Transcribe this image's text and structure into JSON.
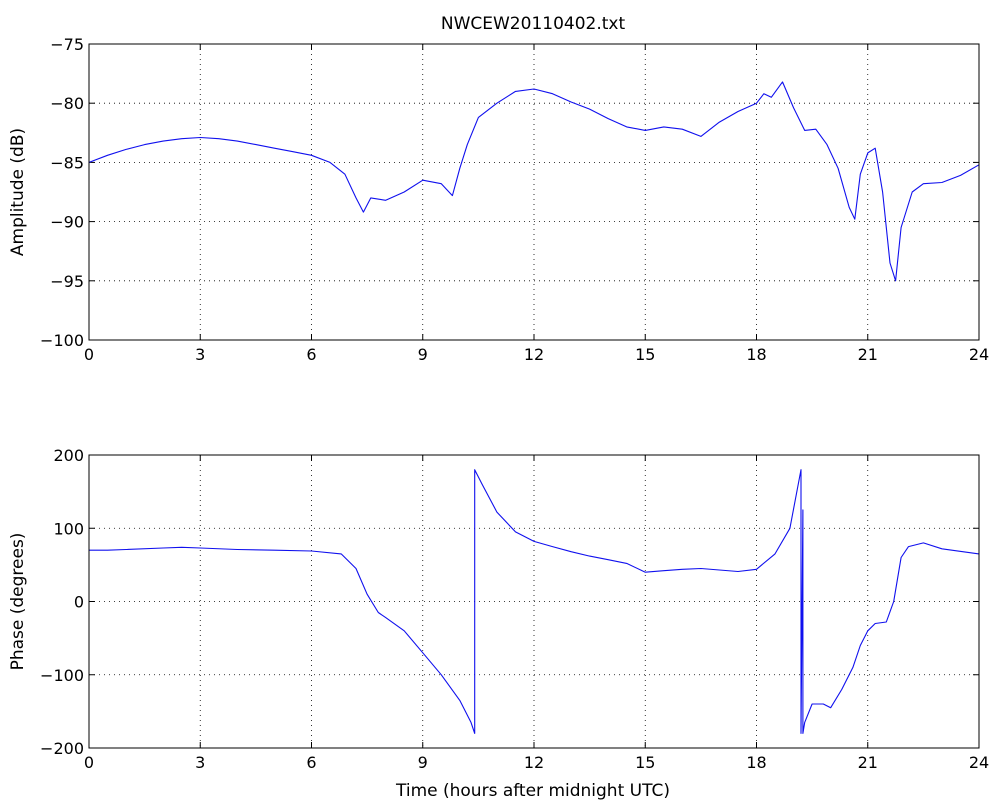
{
  "chart_data": [
    {
      "type": "line",
      "title": "NWCEW20110402.txt",
      "xlabel": "",
      "ylabel": "Amplitude (dB)",
      "xlim": [
        0,
        24
      ],
      "ylim": [
        -100,
        -75
      ],
      "xticks": [
        "0",
        "3",
        "6",
        "9",
        "12",
        "15",
        "18",
        "21",
        "24"
      ],
      "yticks": [
        "−75",
        "−80",
        "−85",
        "−90",
        "−95",
        "−100"
      ],
      "grid": true,
      "series": [
        {
          "color": "#1010ee",
          "x": [
            0,
            0.5,
            1,
            1.5,
            2,
            2.5,
            3,
            3.5,
            4,
            4.5,
            5,
            5.5,
            6,
            6.5,
            6.9,
            7.2,
            7.4,
            7.6,
            8.0,
            8.5,
            9.0,
            9.5,
            9.8,
            10.0,
            10.2,
            10.5,
            11.0,
            11.5,
            12.0,
            12.5,
            13.0,
            13.5,
            14.0,
            14.5,
            15.0,
            15.5,
            16.0,
            16.5,
            17.0,
            17.5,
            18.0,
            18.2,
            18.4,
            18.7,
            19.0,
            19.3,
            19.6,
            19.9,
            20.2,
            20.5,
            20.65,
            20.8,
            21.0,
            21.2,
            21.4,
            21.6,
            21.75,
            21.9,
            22.2,
            22.5,
            23.0,
            23.5,
            24.0
          ],
          "y": [
            -85.0,
            -84.4,
            -83.9,
            -83.5,
            -83.2,
            -83.0,
            -82.9,
            -83.0,
            -83.2,
            -83.5,
            -83.8,
            -84.1,
            -84.4,
            -85.0,
            -86.0,
            -88.0,
            -89.2,
            -88.0,
            -88.2,
            -87.5,
            -86.5,
            -86.8,
            -87.8,
            -85.5,
            -83.5,
            -81.2,
            -80.0,
            -79.0,
            -78.8,
            -79.2,
            -79.9,
            -80.5,
            -81.3,
            -82.0,
            -82.3,
            -82.0,
            -82.2,
            -82.8,
            -81.6,
            -80.7,
            -80.0,
            -79.2,
            -79.5,
            -78.2,
            -80.4,
            -82.3,
            -82.2,
            -83.5,
            -85.5,
            -88.8,
            -89.8,
            -86.0,
            -84.2,
            -83.8,
            -87.5,
            -93.5,
            -95.0,
            -90.5,
            -87.5,
            -86.8,
            -86.7,
            -86.1,
            -85.2
          ]
        }
      ]
    },
    {
      "type": "line",
      "title": "",
      "xlabel": "Time (hours after midnight UTC)",
      "ylabel": "Phase (degrees)",
      "xlim": [
        0,
        24
      ],
      "ylim": [
        -200,
        200
      ],
      "xticks": [
        "0",
        "3",
        "6",
        "9",
        "12",
        "15",
        "18",
        "21",
        "24"
      ],
      "yticks": [
        "200",
        "100",
        "0",
        "−100",
        "−200"
      ],
      "grid": true,
      "series": [
        {
          "color": "#1010ee",
          "x": [
            0,
            0.5,
            1,
            2,
            2.5,
            3,
            4,
            5,
            6,
            6.8,
            7.2,
            7.5,
            7.8,
            8.0,
            8.5,
            9.0,
            9.5,
            10.0,
            10.3,
            10.4,
            10.4,
            10.6,
            11.0,
            11.5,
            12.0,
            12.5,
            13.0,
            13.5,
            14.0,
            14.5,
            15.0,
            15.5,
            16.0,
            16.5,
            17.0,
            17.5,
            18.0,
            18.5,
            18.9,
            19.2,
            19.2,
            19.25,
            19.25,
            19.3,
            19.5,
            19.8,
            20.0,
            20.3,
            20.6,
            20.8,
            21.0,
            21.2,
            21.5,
            21.7,
            21.9,
            22.1,
            22.5,
            23.0,
            24.0
          ],
          "y": [
            70,
            70,
            71,
            73,
            74,
            73,
            71,
            70,
            69,
            65,
            45,
            10,
            -15,
            -22,
            -40,
            -70,
            -100,
            -135,
            -165,
            -180,
            180,
            160,
            122,
            95,
            82,
            75,
            68,
            62,
            57,
            52,
            40,
            42,
            44,
            45,
            43,
            41,
            44,
            65,
            100,
            180,
            -180,
            125,
            -180,
            -165,
            -140,
            -140,
            -145,
            -120,
            -90,
            -60,
            -40,
            -30,
            -28,
            0,
            60,
            75,
            80,
            72,
            65
          ]
        }
      ]
    }
  ]
}
